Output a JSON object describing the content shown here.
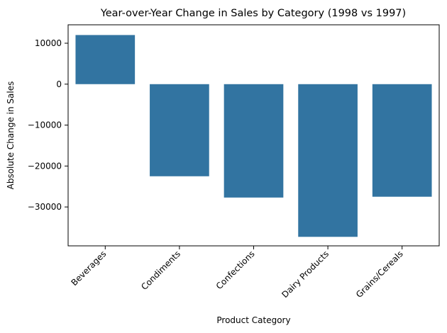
{
  "chart_data": {
    "type": "bar",
    "title": "Year-over-Year Change in Sales by Category (1998 vs 1997)",
    "xlabel": "Product Category",
    "ylabel": "Absolute Change in Sales",
    "categories": [
      "Beverages",
      "Condiments",
      "Confections",
      "Dairy Products",
      "Grains/Cereals"
    ],
    "values": [
      12000,
      -22500,
      -27700,
      -37300,
      -27500
    ],
    "ylim": [
      -39500,
      14500
    ],
    "yticks": [
      10000,
      0,
      -10000,
      -20000,
      -30000
    ],
    "ytick_labels": [
      "10000",
      "0",
      "−10000",
      "−20000",
      "−30000"
    ],
    "bar_color": "#3274a1",
    "grid": false,
    "legend": "none"
  }
}
